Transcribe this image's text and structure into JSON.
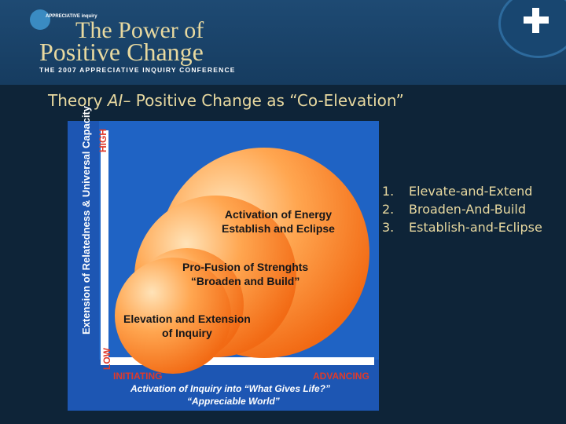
{
  "header": {
    "logo_small": "APPRECIATIVE inquiry",
    "logo_line1": "The Power of",
    "logo_line2": "Positive Change",
    "conference": "THE 2007 APPRECIATIVE INQUIRY CONFERENCE",
    "plus_icon": "plus-icon"
  },
  "slide": {
    "title_prefix": "Theory ",
    "title_ai": "AI",
    "title_suffix": "– Positive Change as “Co-Elevation”"
  },
  "diagram": {
    "y_axis_label": "Extension of Relatedness & Universal Capacity",
    "y_high": "HIGH",
    "y_low": "LOW",
    "x_low": "INITIATING",
    "x_high": "ADVANCING",
    "x_axis_line1": "Activation of Inquiry into “What Gives Life?”",
    "x_axis_line2": "“Appreciable World”",
    "bubbles": [
      {
        "line1": "Activation of Energy",
        "line2": "Establish and Eclipse"
      },
      {
        "line1": "Pro-Fusion of Strenghts",
        "line2": "“Broaden and Build”"
      },
      {
        "line1": "Elevation and Extension",
        "line2": "of Inquiry"
      }
    ],
    "colors": {
      "bubble": "#f57a1f",
      "bubble_light": "#ffe3b8",
      "panel": "#1f63c4",
      "accent": "#e03a2a"
    }
  },
  "list": [
    {
      "num": "1.",
      "text": "Elevate-and-Extend"
    },
    {
      "num": "2.",
      "text": "Broaden-And-Build"
    },
    {
      "num": "3.",
      "text": "Establish-and-Eclipse"
    }
  ]
}
